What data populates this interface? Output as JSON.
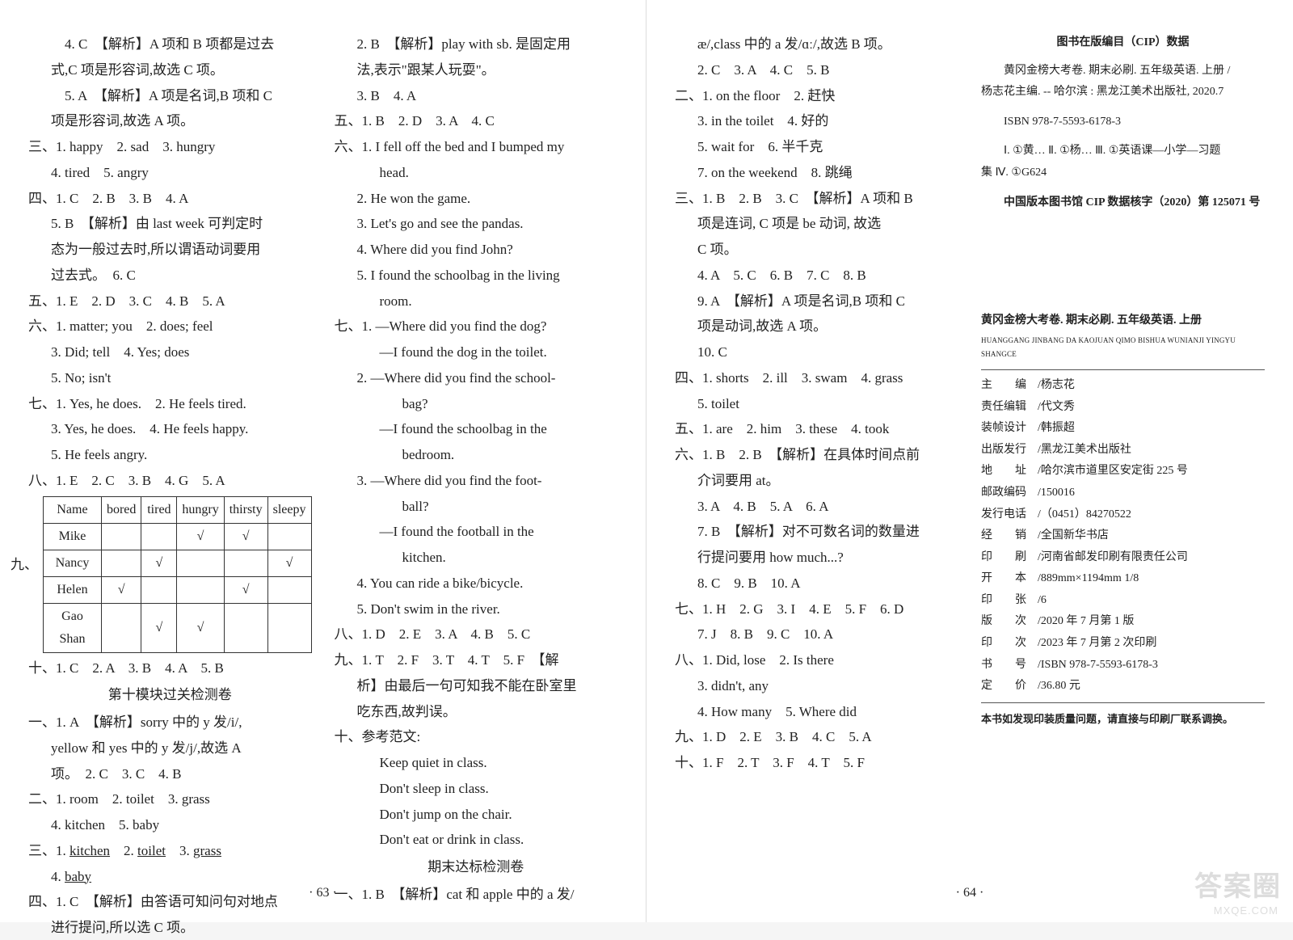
{
  "leftPage": {
    "col1": {
      "lines": [
        {
          "t": "　4. C　【解析】A 项和 B 项都是过去",
          "cls": "indent"
        },
        {
          "t": "式,C 项是形容词,故选 C 项。",
          "cls": "indent"
        },
        {
          "t": "　5. A　【解析】A 项是名词,B 项和 C",
          "cls": "indent"
        },
        {
          "t": "项是形容词,故选 A 项。",
          "cls": "indent"
        },
        {
          "t": "三、1. happy　2. sad　3. hungry"
        },
        {
          "t": "4. tired　5. angry",
          "cls": "indent"
        },
        {
          "t": "四、1. C　2. B　3. B　4. A"
        },
        {
          "t": "5. B　【解析】由 last week 可判定时",
          "cls": "indent"
        },
        {
          "t": "态为一般过去时,所以谓语动词要用",
          "cls": "indent"
        },
        {
          "t": "过去式。　6. C",
          "cls": "indent"
        },
        {
          "t": "五、1. E　2. D　3. C　4. B　5. A"
        },
        {
          "t": "六、1. matter; you　2. does; feel"
        },
        {
          "t": "3. Did; tell　4. Yes; does",
          "cls": "indent"
        },
        {
          "t": "5. No; isn't",
          "cls": "indent"
        },
        {
          "t": "七、1. Yes, he does.　2. He feels tired."
        },
        {
          "t": "3. Yes, he does.　4. He feels happy.",
          "cls": "indent"
        },
        {
          "t": "5. He feels angry.",
          "cls": "indent"
        },
        {
          "t": "八、1. E　2. C　3. B　4. G　5. A"
        }
      ],
      "nineLabel": "九、",
      "table": {
        "headers": [
          "Name",
          "bored",
          "tired",
          "hungry",
          "thirsty",
          "sleepy"
        ],
        "rows": [
          [
            "Mike",
            "",
            "",
            "√",
            "√",
            ""
          ],
          [
            "Nancy",
            "",
            "√",
            "",
            "",
            "√"
          ],
          [
            "Helen",
            "√",
            "",
            "",
            "√",
            ""
          ],
          [
            "Gao Shan",
            "",
            "√",
            "√",
            "",
            ""
          ]
        ]
      },
      "afterTable": [
        {
          "t": "十、1. C　2. A　3. B　4. A　5. B"
        },
        {
          "t": "第十模块过关检测卷",
          "cls": "section-title"
        },
        {
          "t": "一、1. A　【解析】sorry 中的 y 发/i/,"
        },
        {
          "t": "yellow 和 yes 中的 y 发/j/,故选 A",
          "cls": "indent"
        },
        {
          "t": "项。　2. C　3. C　4. B",
          "cls": "indent"
        },
        {
          "t": "二、1. room　2. toilet　3. grass"
        },
        {
          "t": "4. kitchen　5. baby",
          "cls": "indent"
        }
      ],
      "underlineLine": {
        "prefix": "三、1. ",
        "items": [
          "kitchen",
          "toilet",
          "grass",
          "baby"
        ]
      },
      "tail": [
        {
          "t": "四、1. C　【解析】由答语可知问句对地点"
        },
        {
          "t": "进行提问,所以选 C 项。",
          "cls": "indent"
        }
      ]
    },
    "col2": {
      "lines": [
        {
          "t": "2. B　【解析】play with sb. 是固定用",
          "cls": "indent"
        },
        {
          "t": "法,表示\"跟某人玩耍\"。",
          "cls": "indent"
        },
        {
          "t": "3. B　4. A",
          "cls": "indent"
        },
        {
          "t": "五、1. B　2. D　3. A　4. C"
        },
        {
          "t": "六、1. I fell off the bed and I bumped my"
        },
        {
          "t": "head.",
          "cls": "indent2"
        },
        {
          "t": "2. He won the game.",
          "cls": "indent"
        },
        {
          "t": "3. Let's go and see the pandas.",
          "cls": "indent"
        },
        {
          "t": "4. Where did you find John?",
          "cls": "indent"
        },
        {
          "t": "5. I found the schoolbag in the living",
          "cls": "indent"
        },
        {
          "t": "room.",
          "cls": "indent2"
        },
        {
          "t": "七、1. —Where did you find the dog?"
        },
        {
          "t": "—I found the dog in the toilet.",
          "cls": "indent2"
        },
        {
          "t": "2. —Where did you find the school-",
          "cls": "indent"
        },
        {
          "t": "bag?",
          "cls": "indent3"
        },
        {
          "t": "—I found the schoolbag in the",
          "cls": "indent2"
        },
        {
          "t": "bedroom.",
          "cls": "indent3"
        },
        {
          "t": "3. —Where did you find the foot-",
          "cls": "indent"
        },
        {
          "t": "ball?",
          "cls": "indent3"
        },
        {
          "t": "—I found the football in the",
          "cls": "indent2"
        },
        {
          "t": "kitchen.",
          "cls": "indent3"
        },
        {
          "t": "4. You can ride a bike/bicycle.",
          "cls": "indent"
        },
        {
          "t": "5. Don't swim in the river.",
          "cls": "indent"
        },
        {
          "t": "八、1. D　2. E　3. A　4. B　5. C"
        },
        {
          "t": "九、1. T　2. F　3. T　4. T　5. F　【解"
        },
        {
          "t": "析】由最后一句可知我不能在卧室里",
          "cls": "indent"
        },
        {
          "t": "吃东西,故判误。",
          "cls": "indent"
        },
        {
          "t": "十、参考范文:"
        },
        {
          "t": "Keep quiet in class.",
          "cls": "indent2"
        },
        {
          "t": "Don't sleep in class.",
          "cls": "indent2"
        },
        {
          "t": "Don't jump on the chair.",
          "cls": "indent2"
        },
        {
          "t": "Don't eat or drink in class.",
          "cls": "indent2"
        },
        {
          "t": "期末达标检测卷",
          "cls": "section-title"
        },
        {
          "t": "一、1. B　【解析】cat 和 apple 中的 a 发/"
        }
      ]
    },
    "pageNum": "· 63 ·"
  },
  "rightPage": {
    "col1": {
      "lines": [
        {
          "t": "æ/,class 中的 a 发/ɑː/,故选 B 项。",
          "cls": "indent"
        },
        {
          "t": "2. C　3. A　4. C　5. B",
          "cls": "indent"
        },
        {
          "t": "二、1. on the floor　2. 赶快"
        },
        {
          "t": "3. in the toilet　4. 好的",
          "cls": "indent"
        },
        {
          "t": "5. wait for　6. 半千克",
          "cls": "indent"
        },
        {
          "t": "7. on the weekend　8. 跳绳",
          "cls": "indent"
        },
        {
          "t": "三、1. B　2. B　3. C　【解析】A 项和 B"
        },
        {
          "t": "项是连词, C 项是 be 动词, 故选",
          "cls": "indent"
        },
        {
          "t": "C 项。",
          "cls": "indent"
        },
        {
          "t": "4. A　5. C　6. B　7. C　8. B",
          "cls": "indent"
        },
        {
          "t": "9. A　【解析】A 项是名词,B 项和 C",
          "cls": "indent"
        },
        {
          "t": "项是动词,故选 A 项。",
          "cls": "indent"
        },
        {
          "t": "10. C",
          "cls": "indent"
        },
        {
          "t": "四、1. shorts　2. ill　3. swam　4. grass"
        },
        {
          "t": "5. toilet",
          "cls": "indent"
        },
        {
          "t": "五、1. are　2. him　3. these　4. took"
        },
        {
          "t": "六、1. B　2. B　【解析】在具体时间点前"
        },
        {
          "t": "介词要用 at。",
          "cls": "indent"
        },
        {
          "t": "3. A　4. B　5. A　6. A",
          "cls": "indent"
        },
        {
          "t": "7. B　【解析】对不可数名词的数量进",
          "cls": "indent"
        },
        {
          "t": "行提问要用 how much...?",
          "cls": "indent"
        },
        {
          "t": "8. C　9. B　10. A",
          "cls": "indent"
        },
        {
          "t": "七、1. H　2. G　3. I　4. E　5. F　6. D"
        },
        {
          "t": "7. J　8. B　9. C　10. A",
          "cls": "indent"
        },
        {
          "t": "八、1. Did, lose　2. Is there"
        },
        {
          "t": "3. didn't, any",
          "cls": "indent"
        },
        {
          "t": "4. How many　5. Where did",
          "cls": "indent"
        },
        {
          "t": "九、1. D　2. E　3. B　4. C　5. A"
        },
        {
          "t": "十、1. F　2. T　3. F　4. T　5. F"
        }
      ]
    },
    "col2": {
      "cipTitle": "图书在版编目（CIP）数据",
      "cipPara": [
        "黄冈金榜大考卷. 期末必刷. 五年级英语. 上册 /",
        "杨志花主编. -- 哈尔滨 : 黑龙江美术出版社, 2020.7"
      ],
      "isbn": "ISBN 978-7-5593-6178-3",
      "cipClass": "Ⅰ. ①黄… Ⅱ. ①杨… Ⅲ. ①英语课—小学—习题",
      "cipClass2": "集 Ⅳ. ①G624",
      "cipNum": "中国版本图书馆 CIP 数据核字（2020）第 125071 号",
      "bookTitle": "黄冈金榜大考卷. 期末必刷. 五年级英语. 上册",
      "bookPinyin": "HUANGGANG JINBANG DA KAOJUAN QIMO BISHUA WUNIANJI YINGYU SHANGCE",
      "meta": [
        {
          "k": "主　　编",
          "v": "/杨志花"
        },
        {
          "k": "责任编辑",
          "v": "/代文秀"
        },
        {
          "k": "装帧设计",
          "v": "/韩振超"
        },
        {
          "k": "出版发行",
          "v": "/黑龙江美术出版社"
        },
        {
          "k": "地　　址",
          "v": "/哈尔滨市道里区安定街 225 号"
        },
        {
          "k": "邮政编码",
          "v": "/150016"
        },
        {
          "k": "发行电话",
          "v": "/（0451）84270522"
        },
        {
          "k": "经　　销",
          "v": "/全国新华书店"
        },
        {
          "k": "印　　刷",
          "v": "/河南省邮发印刷有限责任公司"
        },
        {
          "k": "开　　本",
          "v": "/889mm×1194mm 1/8"
        },
        {
          "k": "印　　张",
          "v": "/6"
        },
        {
          "k": "版　　次",
          "v": "/2020 年 7 月第 1 版"
        },
        {
          "k": "印　　次",
          "v": "/2023 年 7 月第 2 次印刷"
        },
        {
          "k": "书　　号",
          "v": "/ISBN 978-7-5593-6178-3"
        },
        {
          "k": "定　　价",
          "v": "/36.80 元"
        }
      ],
      "note": "本书如发现印装质量问题，请直接与印刷厂联系调换。"
    },
    "pageNum": "· 64 ·"
  },
  "watermark": "答案圈",
  "watermarkSub": "MXQE.COM"
}
